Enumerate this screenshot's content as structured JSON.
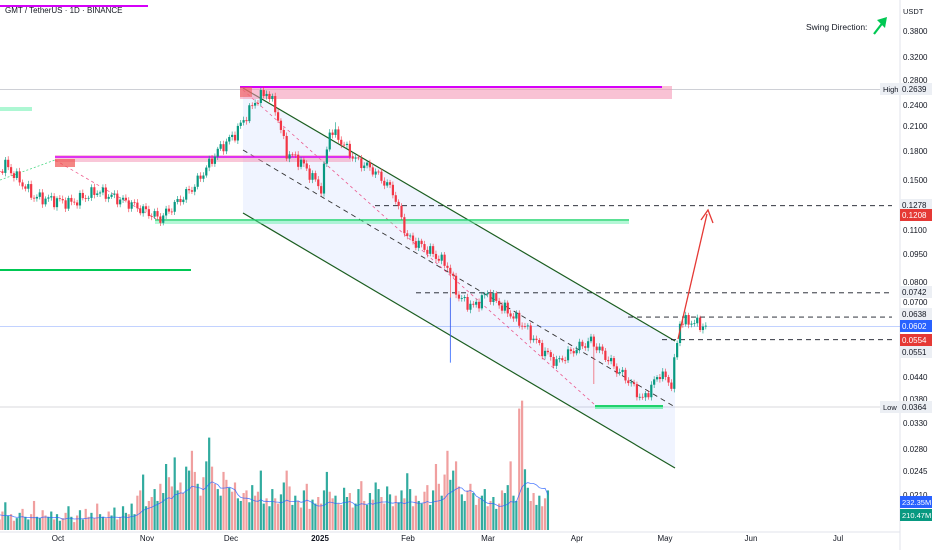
{
  "header": {
    "symbol_title": "GMT / TetherUS · 1D · BINANCE",
    "swing_label": "Swing Direction:",
    "currency": "USDT"
  },
  "chart_data": {
    "type": "candlestick",
    "title": "GMT / TetherUS · 1D · BINANCE",
    "y_scale": "log",
    "ylim": [
      0.0195,
      0.45
    ],
    "x_tick_labels": [
      "Oct",
      "Nov",
      "Dec",
      "2025",
      "Feb",
      "Mar",
      "Apr",
      "May",
      "Jun",
      "Jul"
    ],
    "y_tick_labels": [
      "0.3800",
      "0.3200",
      "0.2800",
      "0.2400",
      "0.2100",
      "0.1800",
      "0.1500",
      "0.1100",
      "0.0950",
      "0.0800",
      "0.0700",
      "0.0440",
      "0.0380",
      "0.0330",
      "0.0280",
      "0.0245",
      "0.0210"
    ],
    "price_labels": [
      {
        "label": "High",
        "value": "0.2639",
        "color": "#eceff4",
        "text_color": "#131722"
      },
      {
        "label": "",
        "value": "0.1278",
        "color": "#eceff4",
        "text_color": "#131722"
      },
      {
        "label": "",
        "value": "0.1208",
        "color": "#e53935",
        "text_color": "#ffffff"
      },
      {
        "label": "",
        "value": "0.0742",
        "color": "#eceff4",
        "text_color": "#131722"
      },
      {
        "label": "",
        "value": "0.0638",
        "color": "#eceff4",
        "text_color": "#131722"
      },
      {
        "label": "",
        "value": "0.0602",
        "color": "#2962ff",
        "text_color": "#ffffff"
      },
      {
        "label": "",
        "value": "0.0554",
        "color": "#e53935",
        "text_color": "#ffffff"
      },
      {
        "label": "",
        "value": "0.0551",
        "color": "#eceff4",
        "text_color": "#131722"
      },
      {
        "label": "Low",
        "value": "0.0364",
        "color": "#eceff4",
        "text_color": "#131722"
      }
    ],
    "volume_labels": [
      {
        "value": "232.35M",
        "color": "#2962ff"
      },
      {
        "value": "210.47M",
        "color": "#089981"
      }
    ],
    "key_levels": {
      "high": 0.2639,
      "low": 0.0364,
      "target": 0.1278,
      "resistance": 0.0742,
      "breakout": 0.0638,
      "last": 0.0602,
      "support": 0.0554
    },
    "volume_series": [
      0.22,
      0.1,
      0.09,
      0.16,
      0.08,
      0.2,
      0.24,
      0.1,
      0.12,
      0.19,
      0.15,
      0.09,
      0.13,
      0.18,
      0.08,
      0.14,
      0.21,
      0.11,
      0.12,
      0.07,
      0.09,
      0.13,
      0.16,
      0.1,
      0.08,
      0.12,
      0.22,
      0.1,
      0.09,
      0.15,
      0.11,
      0.1,
      0.14,
      0.08,
      0.12,
      0.07,
      0.09,
      0.13,
      0.18,
      0.1,
      0.06,
      0.11,
      0.15,
      0.08,
      0.16,
      0.1,
      0.13,
      0.09,
      0.2,
      0.12,
      0.1,
      0.09,
      0.14,
      0.11,
      0.17,
      0.08,
      0.1,
      0.18,
      0.13,
      0.12,
      0.2,
      0.12,
      0.26,
      0.3,
      0.42,
      0.18,
      0.22,
      0.25,
      0.31,
      0.22,
      0.35,
      0.28,
      0.5,
      0.4,
      0.33,
      0.55,
      0.3,
      0.36,
      0.28,
      0.48,
      0.45,
      0.6,
      0.44,
      0.35,
      0.26,
      0.4,
      0.52,
      0.7,
      0.48,
      0.35,
      0.31,
      0.26,
      0.44,
      0.38,
      0.32,
      0.29,
      0.36,
      0.24,
      0.22,
      0.28,
      0.3,
      0.21,
      0.34,
      0.26,
      0.29,
      0.45,
      0.2,
      0.24,
      0.18,
      0.31,
      0.24,
      0.2,
      0.27,
      0.36,
      0.45,
      0.33,
      0.19,
      0.26,
      0.22,
      0.17,
      0.3,
      0.35,
      0.16,
      0.23,
      0.2,
      0.25,
      0.2,
      0.3,
      0.44,
      0.29,
      0.24,
      0.26,
      0.2,
      0.19,
      0.32,
      0.25,
      0.28,
      0.17,
      0.2,
      0.31,
      0.37,
      0.22,
      0.19,
      0.28,
      0.23,
      0.36,
      0.31,
      0.25,
      0.2,
      0.33,
      0.27,
      0.18,
      0.26,
      0.21,
      0.3,
      0.24,
      0.43,
      0.31,
      0.18,
      0.26,
      0.22,
      0.2,
      0.29,
      0.34,
      0.19,
      0.3,
      0.5,
      0.35,
      0.26,
      0.42,
      0.6,
      0.38,
      0.45,
      0.52,
      0.33,
      0.27,
      0.22,
      0.3,
      0.35,
      0.28,
      0.19,
      0.24,
      0.26,
      0.31,
      0.18,
      0.22,
      0.25,
      0.16,
      0.2,
      0.3,
      0.28,
      0.34,
      0.52,
      0.26,
      0.22,
      0.92,
      0.98,
      0.46,
      0.32,
      0.22,
      0.28,
      0.19,
      0.26,
      0.18,
      0.24,
      0.3
    ]
  }
}
